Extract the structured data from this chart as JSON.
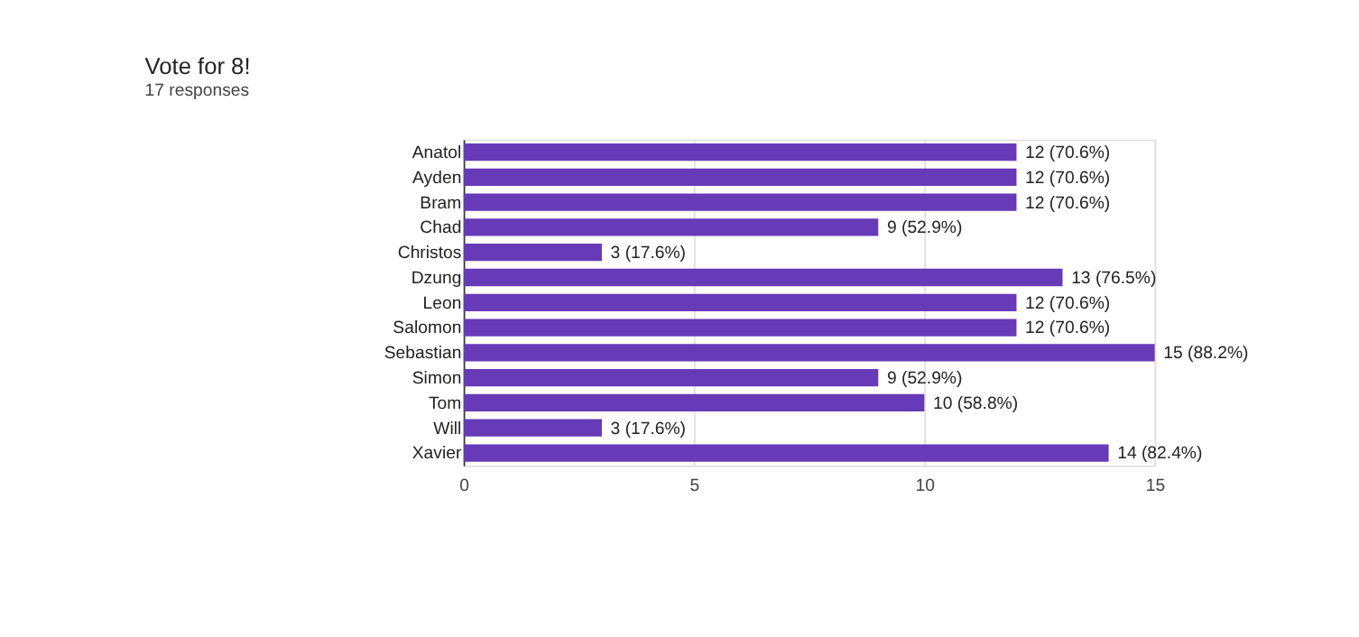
{
  "chart_data": {
    "type": "bar",
    "orientation": "horizontal",
    "title": "Vote for 8!",
    "subtitle": "17 responses",
    "categories": [
      "Anatol",
      "Ayden",
      "Bram",
      "Chad",
      "Christos",
      "Dzung",
      "Leon",
      "Salomon",
      "Sebastian",
      "Simon",
      "Tom",
      "Will",
      "Xavier"
    ],
    "values": [
      12,
      12,
      12,
      9,
      3,
      13,
      12,
      12,
      15,
      9,
      10,
      3,
      14
    ],
    "value_labels": [
      "12 (70.6%)",
      "12 (70.6%)",
      "12 (70.6%)",
      "9 (52.9%)",
      "3 (17.6%)",
      "13 (76.5%)",
      "12 (70.6%)",
      "12 (70.6%)",
      "15 (88.2%)",
      "9 (52.9%)",
      "10 (58.8%)",
      "3 (17.6%)",
      "14 (82.4%)"
    ],
    "color": "#673ab7",
    "xlim": [
      0,
      15
    ],
    "xticks": [
      0,
      5,
      10,
      15
    ],
    "grid": "x"
  }
}
